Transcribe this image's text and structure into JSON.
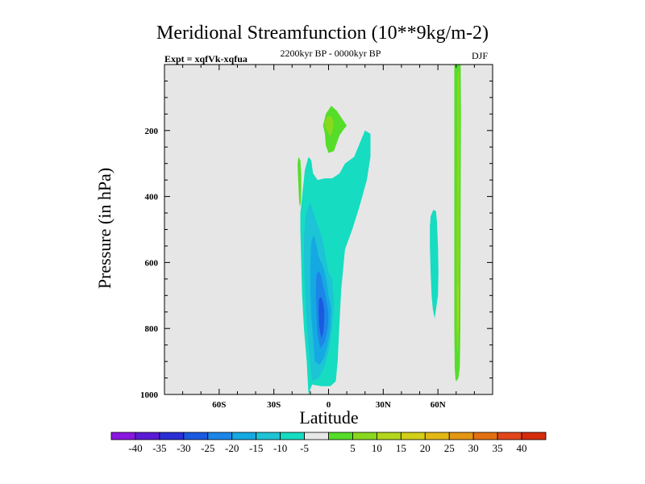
{
  "colors": {
    "background": "#e6e6e6",
    "fill_levels": {
      "-40": "#8a16e0",
      "-35": "#5a1ad6",
      "-30": "#2a2fd6",
      "-25": "#1a5ae0",
      "-20": "#1c86e8",
      "-15": "#15a9e3",
      "-10": "#1cc4d6",
      "-5": "#16dcc1",
      "0": "#e8e8e8",
      "5": "#55dd2a",
      "10": "#8ad81e",
      "15": "#b3d61c",
      "20": "#d3cf18",
      "25": "#e3b814",
      "30": "#e59612",
      "35": "#e37010",
      "40": "#e2461a",
      "45": "#d62c0c"
    }
  },
  "chart_data": {
    "type": "contour",
    "title": "Meridional Streamfunction (10**9kg/m-2)",
    "subtitle_left": "Expt = xqfVk-xqfua",
    "subtitle_center": "2200kyr BP - 0000kyr BP",
    "subtitle_right": "DJF",
    "xlabel": "Latitude",
    "ylabel": "Pressure (in hPa)",
    "xlim": [
      -90,
      90
    ],
    "ylim": [
      1000,
      0
    ],
    "x_ticks": [
      {
        "value": -60,
        "label": "60S"
      },
      {
        "value": -30,
        "label": "30S"
      },
      {
        "value": 0,
        "label": "0"
      },
      {
        "value": 30,
        "label": "30N"
      },
      {
        "value": 60,
        "label": "60N"
      }
    ],
    "y_ticks": [
      {
        "value": 200,
        "label": "200"
      },
      {
        "value": 400,
        "label": "400"
      },
      {
        "value": 600,
        "label": "600"
      },
      {
        "value": 800,
        "label": "800"
      },
      {
        "value": 1000,
        "label": "1000"
      }
    ],
    "colorbar_labels": [
      "-40",
      "-35",
      "-30",
      "-25",
      "-20",
      "-15",
      "-10",
      "-5",
      "5",
      "10",
      "15",
      "20",
      "25",
      "30",
      "35",
      "40"
    ],
    "regions": [
      {
        "level": "-5",
        "points": [
          [
            -11,
            1000
          ],
          [
            -12,
            900
          ],
          [
            -13.5,
            800
          ],
          [
            -14.5,
            700
          ],
          [
            -15,
            600
          ],
          [
            -15.5,
            500
          ],
          [
            -15.5,
            450
          ],
          [
            -14.5,
            400
          ],
          [
            -13,
            320
          ],
          [
            -11,
            280
          ],
          [
            -9.5,
            290
          ],
          [
            -8.5,
            330
          ],
          [
            -6,
            350
          ],
          [
            -2,
            345
          ],
          [
            2,
            345
          ],
          [
            6,
            330
          ],
          [
            9,
            300
          ],
          [
            14,
            280
          ],
          [
            17,
            240
          ],
          [
            20,
            200
          ],
          [
            23,
            210
          ],
          [
            23,
            280
          ],
          [
            21,
            350
          ],
          [
            17,
            430
          ],
          [
            13,
            500
          ],
          [
            9,
            560
          ],
          [
            8,
            620
          ],
          [
            7,
            680
          ],
          [
            6,
            780
          ],
          [
            5,
            900
          ],
          [
            4,
            960
          ],
          [
            1,
            975
          ],
          [
            -4,
            975
          ],
          [
            -9,
            970
          ]
        ]
      },
      {
        "level": "-10",
        "points": [
          [
            -9,
            960
          ],
          [
            -10.5,
            880
          ],
          [
            -12,
            780
          ],
          [
            -13,
            680
          ],
          [
            -13.5,
            600
          ],
          [
            -13.5,
            520
          ],
          [
            -12.5,
            460
          ],
          [
            -11,
            430
          ],
          [
            -10,
            420
          ],
          [
            -8.5,
            445
          ],
          [
            -6.5,
            480
          ],
          [
            -5,
            500
          ],
          [
            -4,
            520
          ],
          [
            -2.5,
            550
          ],
          [
            -1.5,
            590
          ],
          [
            0,
            630
          ],
          [
            2,
            650
          ],
          [
            3,
            720
          ],
          [
            2,
            800
          ],
          [
            0,
            870
          ],
          [
            -2.5,
            920
          ],
          [
            -5.5,
            950
          ]
        ]
      },
      {
        "level": "-15",
        "points": [
          [
            -7.5,
            900
          ],
          [
            -8.5,
            830
          ],
          [
            -9.5,
            760
          ],
          [
            -10,
            680
          ],
          [
            -10,
            610
          ],
          [
            -9.5,
            540
          ],
          [
            -8.5,
            520
          ],
          [
            -7.5,
            525
          ],
          [
            -6.5,
            550
          ],
          [
            -5.5,
            580
          ],
          [
            -4,
            600
          ],
          [
            -2.5,
            620
          ],
          [
            -1,
            660
          ],
          [
            0,
            700
          ],
          [
            1.5,
            740
          ],
          [
            1,
            800
          ],
          [
            -0.5,
            850
          ],
          [
            -2.5,
            890
          ],
          [
            -5,
            910
          ]
        ]
      },
      {
        "level": "-20",
        "points": [
          [
            -4.5,
            860
          ],
          [
            -6,
            820
          ],
          [
            -6.5,
            770
          ],
          [
            -7,
            700
          ],
          [
            -6.8,
            640
          ],
          [
            -5.5,
            625
          ],
          [
            -4,
            640
          ],
          [
            -3,
            670
          ],
          [
            -2,
            690
          ],
          [
            -1,
            720
          ],
          [
            0,
            760
          ],
          [
            -0.5,
            800
          ],
          [
            -2,
            840
          ]
        ]
      },
      {
        "level": "-25",
        "points": [
          [
            -4,
            830
          ],
          [
            -5.2,
            790
          ],
          [
            -5.5,
            740
          ],
          [
            -5.2,
            710
          ],
          [
            -4,
            705
          ],
          [
            -3,
            720
          ],
          [
            -2.3,
            750
          ],
          [
            -2.5,
            790
          ],
          [
            -3,
            815
          ]
        ]
      },
      {
        "level": "-5",
        "points": [
          [
            56,
            460
          ],
          [
            57.5,
            440
          ],
          [
            59,
            445
          ],
          [
            59.5,
            480
          ],
          [
            60,
            550
          ],
          [
            60.3,
            630
          ],
          [
            60,
            700
          ],
          [
            59,
            740
          ],
          [
            58.2,
            770
          ],
          [
            57.2,
            740
          ],
          [
            56.5,
            700
          ],
          [
            56,
            630
          ],
          [
            55.6,
            550
          ],
          [
            55.6,
            490
          ]
        ]
      },
      {
        "level": "5",
        "points": [
          [
            -3,
            185
          ],
          [
            -1.5,
            150
          ],
          [
            1.5,
            125
          ],
          [
            4.5,
            140
          ],
          [
            7.5,
            165
          ],
          [
            10,
            185
          ],
          [
            8.5,
            195
          ],
          [
            6,
            215
          ],
          [
            4.5,
            238
          ],
          [
            3,
            262
          ],
          [
            0,
            268
          ],
          [
            -1.5,
            245
          ],
          [
            -2,
            210
          ]
        ]
      },
      {
        "level": "10",
        "points": [
          [
            -2.2,
            175
          ],
          [
            -1,
            160
          ],
          [
            1,
            155
          ],
          [
            2.5,
            168
          ],
          [
            2.7,
            190
          ],
          [
            1.2,
            215
          ],
          [
            0.4,
            215
          ],
          [
            -0.8,
            200
          ],
          [
            -1.8,
            190
          ]
        ]
      },
      {
        "level": "5",
        "points": [
          [
            -17,
            300
          ],
          [
            -16.5,
            280
          ],
          [
            -15.5,
            290
          ],
          [
            -15,
            330
          ],
          [
            -15,
            380
          ],
          [
            -15.2,
            420
          ],
          [
            -15.8,
            430
          ],
          [
            -16.2,
            410
          ],
          [
            -16.5,
            370
          ],
          [
            -16.8,
            330
          ]
        ]
      },
      {
        "level": "5",
        "points": [
          [
            69,
            0
          ],
          [
            70.5,
            -5
          ],
          [
            72.5,
            0
          ],
          [
            72.6,
            150
          ],
          [
            72.5,
            400
          ],
          [
            72.4,
            600
          ],
          [
            72.3,
            800
          ],
          [
            72,
            920
          ],
          [
            71.2,
            950
          ],
          [
            70.2,
            960
          ],
          [
            69.6,
            955
          ],
          [
            69.2,
            920
          ],
          [
            69,
            800
          ],
          [
            69,
            600
          ],
          [
            69,
            400
          ],
          [
            69,
            150
          ]
        ]
      },
      {
        "level": "10",
        "points": [
          [
            70.8,
            20
          ],
          [
            71.3,
            15
          ],
          [
            71.8,
            50
          ],
          [
            71.9,
            200
          ],
          [
            71.8,
            400
          ],
          [
            71.7,
            600
          ],
          [
            71.5,
            750
          ],
          [
            71.2,
            850
          ],
          [
            70.7,
            880
          ],
          [
            70.3,
            850
          ],
          [
            70.2,
            750
          ],
          [
            70.2,
            600
          ],
          [
            70.3,
            400
          ],
          [
            70.5,
            200
          ],
          [
            70.6,
            60
          ]
        ]
      },
      {
        "level": "15",
        "points": [
          [
            70.7,
            680
          ],
          [
            71.1,
            660
          ],
          [
            71.3,
            700
          ],
          [
            71.3,
            760
          ],
          [
            71.1,
            810
          ],
          [
            70.8,
            820
          ],
          [
            70.6,
            780
          ],
          [
            70.6,
            720
          ]
        ]
      }
    ]
  }
}
